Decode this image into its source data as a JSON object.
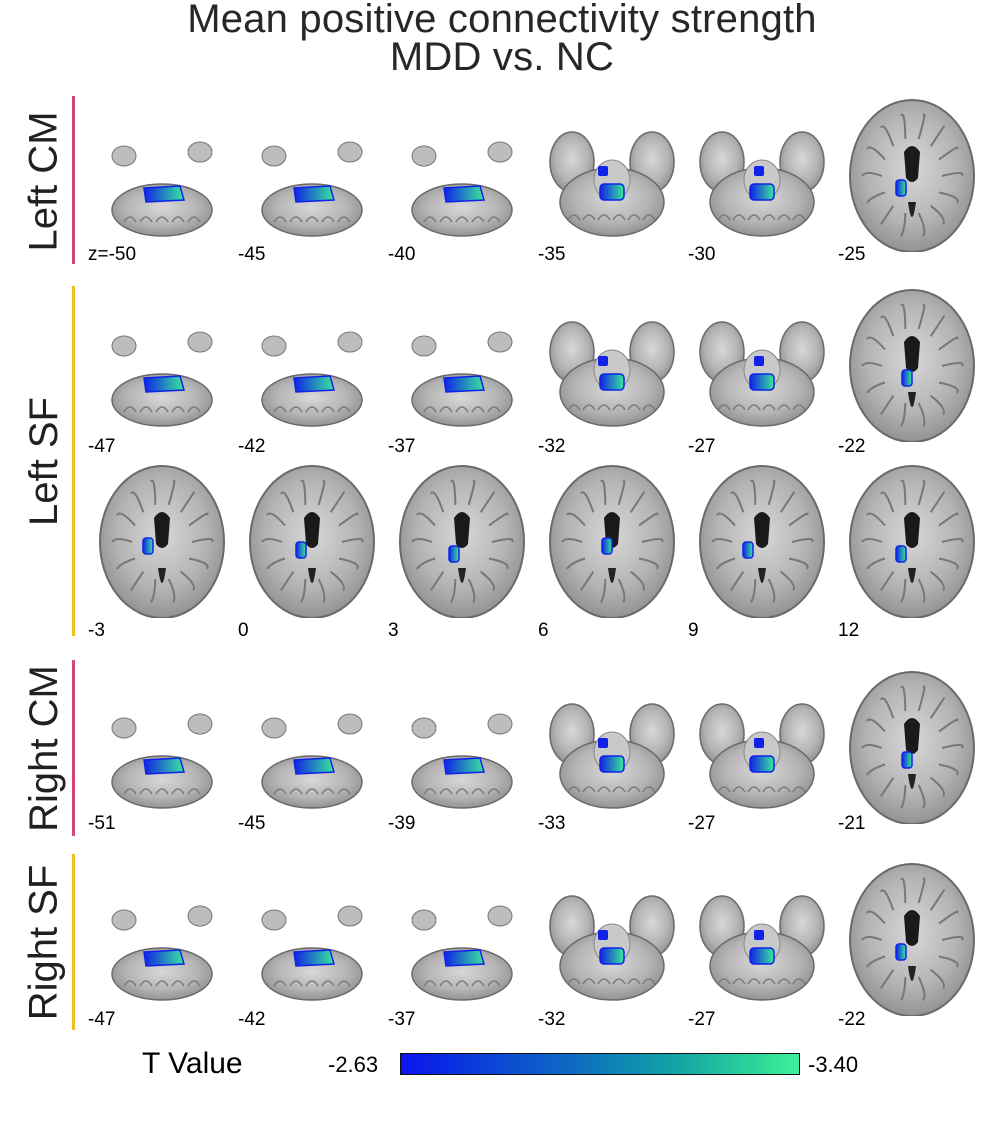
{
  "title": {
    "line1": "Mean positive connectivity strength",
    "line2": "MDD vs. NC"
  },
  "colors": {
    "cm_bar": "#d6457f",
    "sf_bar": "#f2c01e",
    "blob_low": "#1022e8",
    "blob_high": "#38e89a"
  },
  "rows": [
    {
      "label": "Left CM",
      "bar": "cm",
      "slices": [
        "z=-50",
        "-45",
        "-40",
        "-35",
        "-30",
        "-25"
      ]
    },
    {
      "label": "Left SF",
      "bar": "sf",
      "slices": [
        "-47",
        "-42",
        "-37",
        "-32",
        "-27",
        "-22",
        "-3",
        "0",
        "3",
        "6",
        "9",
        "12"
      ]
    },
    {
      "label": "Right CM",
      "bar": "cm",
      "slices": [
        "-51",
        "-45",
        "-39",
        "-33",
        "-27",
        "-21"
      ]
    },
    {
      "label": "Right SF",
      "bar": "sf",
      "slices": [
        "-47",
        "-42",
        "-37",
        "-32",
        "-27",
        "-22"
      ]
    }
  ],
  "colorbar": {
    "title": "T Value",
    "min_label": "-2.63",
    "max_label": "-3.40"
  }
}
